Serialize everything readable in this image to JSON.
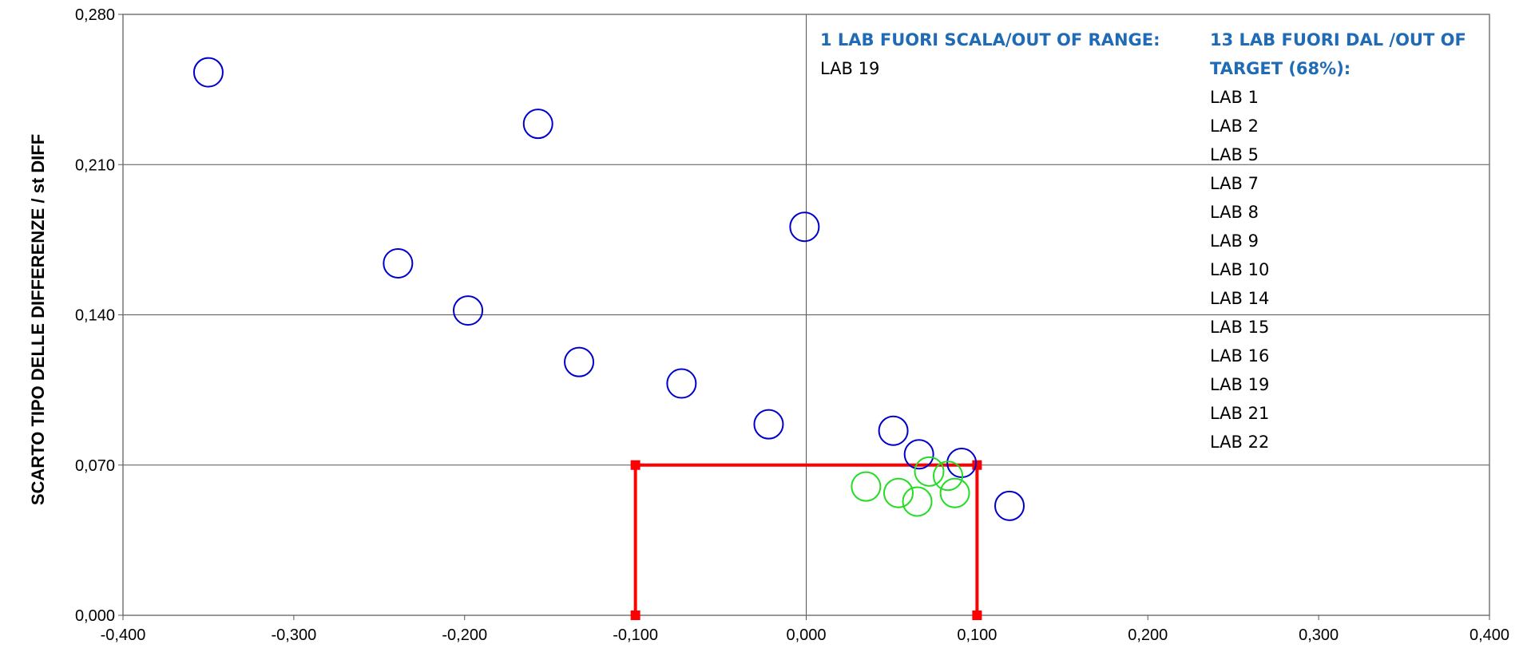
{
  "chart_data": {
    "type": "scatter",
    "ylabel": "SCARTO TIPO DELLE DIFFERENZE / st DIFF",
    "xlabel": "",
    "xlim": [
      -0.4,
      0.4
    ],
    "ylim": [
      0.0,
      0.28
    ],
    "x_ticks": [
      "-0,400",
      "-0,300",
      "-0,200",
      "-0,100",
      "0,000",
      "0,100",
      "0,200",
      "0,300",
      "0,400"
    ],
    "y_ticks": [
      "0,000",
      "0,070",
      "0,140",
      "0,210",
      "0,280"
    ],
    "grid": "horizontal",
    "series": [
      {
        "color": "#0000cc",
        "points": [
          [
            -0.35,
            0.253
          ],
          [
            -0.157,
            0.229
          ],
          [
            -0.239,
            0.164
          ],
          [
            -0.198,
            0.142
          ],
          [
            -0.133,
            0.118
          ],
          [
            -0.073,
            0.108
          ],
          [
            -0.022,
            0.089
          ],
          [
            -0.001,
            0.181
          ],
          [
            0.051,
            0.086
          ],
          [
            0.066,
            0.075
          ],
          [
            0.091,
            0.071
          ],
          [
            0.119,
            0.051
          ]
        ]
      },
      {
        "color": "#22dd22",
        "points": [
          [
            0.035,
            0.06
          ],
          [
            0.054,
            0.057
          ],
          [
            0.065,
            0.053
          ],
          [
            0.072,
            0.067
          ],
          [
            0.083,
            0.065
          ],
          [
            0.087,
            0.057
          ]
        ]
      }
    ],
    "target_box": {
      "x": [
        -0.1,
        0.1
      ],
      "y": [
        0.0,
        0.07
      ],
      "color": "#ff0000"
    },
    "annotations": {
      "out_of_range_title": "1 LAB FUORI SCALA/OUT OF RANGE:",
      "out_of_range_labs": [
        "LAB 19"
      ],
      "out_of_target_title_1": "13 LAB FUORI DAL /OUT OF",
      "out_of_target_title_2": "TARGET (68%):",
      "out_of_target_labs": [
        "LAB 1",
        "LAB 2",
        "LAB 5",
        "LAB 7",
        "LAB 8",
        "LAB 9",
        "LAB 10",
        "LAB 14",
        "LAB 15",
        "LAB 16",
        "LAB 19",
        "LAB 21",
        "LAB 22"
      ]
    }
  }
}
